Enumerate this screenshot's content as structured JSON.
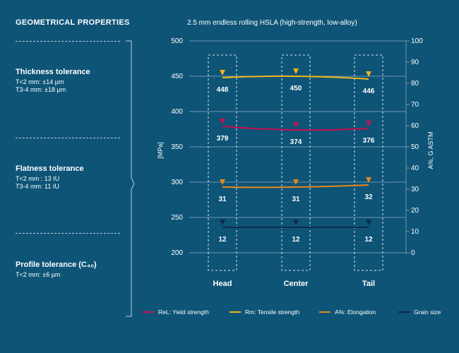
{
  "left_panel": {
    "heading": "GEOMETRICAL PROPERTIES",
    "sections": [
      {
        "title": "Thickness tolerance",
        "lines": [
          "T<2 mm: ±14 µm",
          "T3-4 mm: ±18 µm"
        ]
      },
      {
        "title": "Flatness tolerance",
        "lines": [
          "T<2 mm : 13 IU",
          "T3-4 mm: 11 IU"
        ]
      },
      {
        "title": "Profile tolerance (C₄₀)",
        "lines": [
          "T<2 mm: ±6 µm"
        ]
      }
    ]
  },
  "colors": {
    "background": "#0d5477",
    "yield": "#c8104e",
    "tensile": "#f2b51d",
    "elongation": "#e88a1a",
    "grain": "#0b2a4a",
    "grid": "#6d95ad"
  },
  "chart_data": {
    "type": "line",
    "title": "2.5 mm endless rolling HSLA (high-strength, low-alloy)",
    "categories": [
      "Head",
      "Center",
      "Tail"
    ],
    "left_axis": {
      "label": "[MPa]",
      "min": 200,
      "max": 500,
      "ticks": [
        200,
        250,
        300,
        350,
        400,
        450,
        500
      ]
    },
    "right_axis": {
      "label": "A%, G ASTM",
      "min": 0,
      "max": 100,
      "ticks": [
        0,
        10,
        20,
        30,
        40,
        50,
        60,
        70,
        80,
        90,
        100
      ]
    },
    "series": [
      {
        "name": "ReL: Yield strength",
        "axis": "left",
        "color_key": "yield",
        "values": [
          379,
          374,
          376
        ],
        "labels": [
          "379",
          "374",
          "376"
        ]
      },
      {
        "name": "Rm: Tensile strength",
        "axis": "left",
        "color_key": "tensile",
        "values": [
          448,
          450,
          446
        ],
        "labels": [
          "448",
          "450",
          "446"
        ]
      },
      {
        "name": "A%: Elongation",
        "axis": "right",
        "color_key": "elongation",
        "values": [
          31,
          31,
          32
        ],
        "labels": [
          "31",
          "31",
          "32"
        ]
      },
      {
        "name": "Grain size",
        "axis": "right",
        "color_key": "grain",
        "values": [
          12,
          12,
          12
        ],
        "labels": [
          "12",
          "12",
          "12"
        ]
      }
    ],
    "grid": true,
    "legend_position": "bottom"
  }
}
